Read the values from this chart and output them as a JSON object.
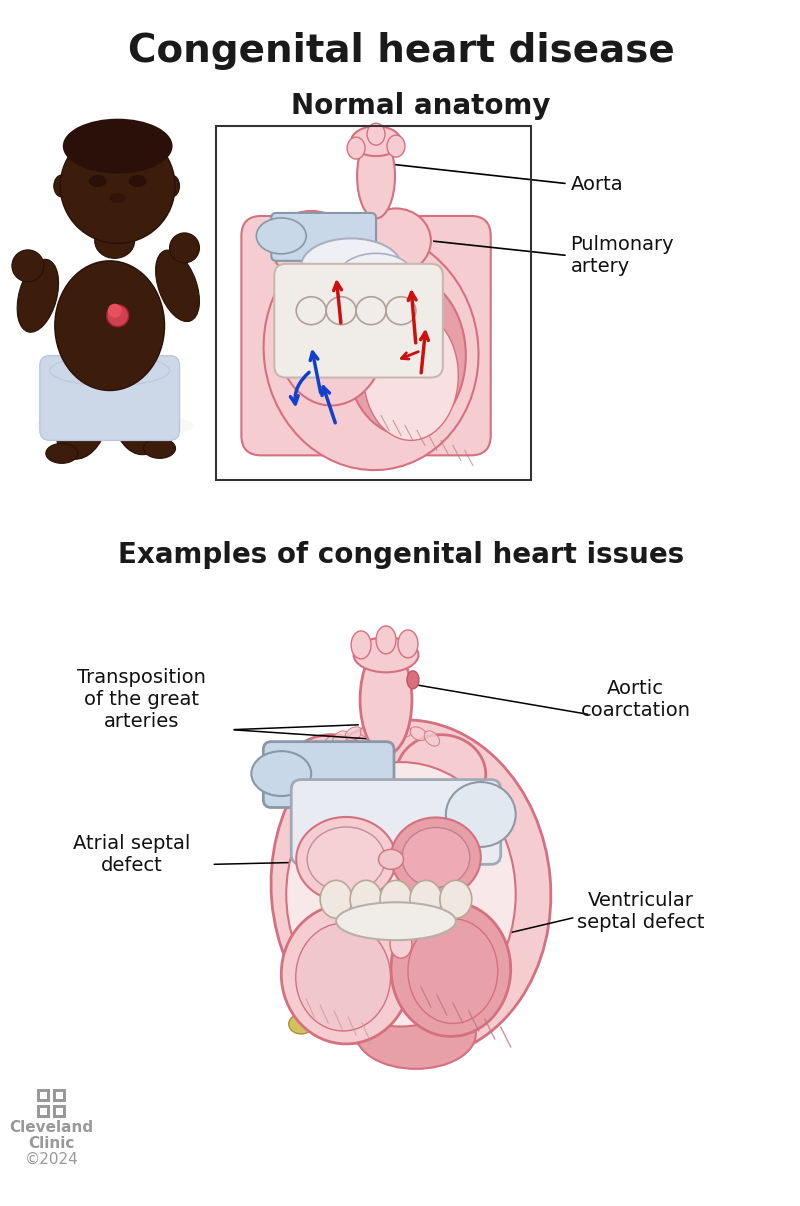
{
  "title": "Congenital heart disease",
  "subtitle_top": "Normal anatomy",
  "subtitle_bottom": "Examples of congenital heart issues",
  "label_aorta": "Aorta",
  "label_pulmonary": "Pulmonary\nartery",
  "label_transposition": "Transposition\nof the great\narteries",
  "label_aortic_coarct": "Aortic\ncoarctation",
  "label_asd": "Atrial septal\ndefect",
  "label_vsd": "Ventricular\nseptal defect",
  "credit_line1": "Cleveland",
  "credit_line2": "Clinic",
  "credit_year": "©2024",
  "bg_color": "#ffffff",
  "title_color": "#1a1a1a",
  "label_color": "#111111",
  "credit_color": "#999999",
  "heart_outer": "#f0b8be",
  "heart_light": "#f5cdd0",
  "heart_mid": "#e8a0a8",
  "heart_dark": "#d47080",
  "heart_muscle": "#c85060",
  "vessel_white": "#dce8f0",
  "vessel_blue_gray": "#c8d8e8",
  "inner_light": "#f8e0e2",
  "inner_cream": "#f5e8e0",
  "arrow_red": "#cc1010",
  "arrow_blue": "#1040cc",
  "skin_very_dark": "#2a1008",
  "skin_dark": "#3c1c0a",
  "skin_mid": "#4e280e",
  "diaper_light": "#ccd8e8",
  "diaper_mid": "#b8c8dc",
  "box_color": "#333333",
  "line_color": "#222222"
}
